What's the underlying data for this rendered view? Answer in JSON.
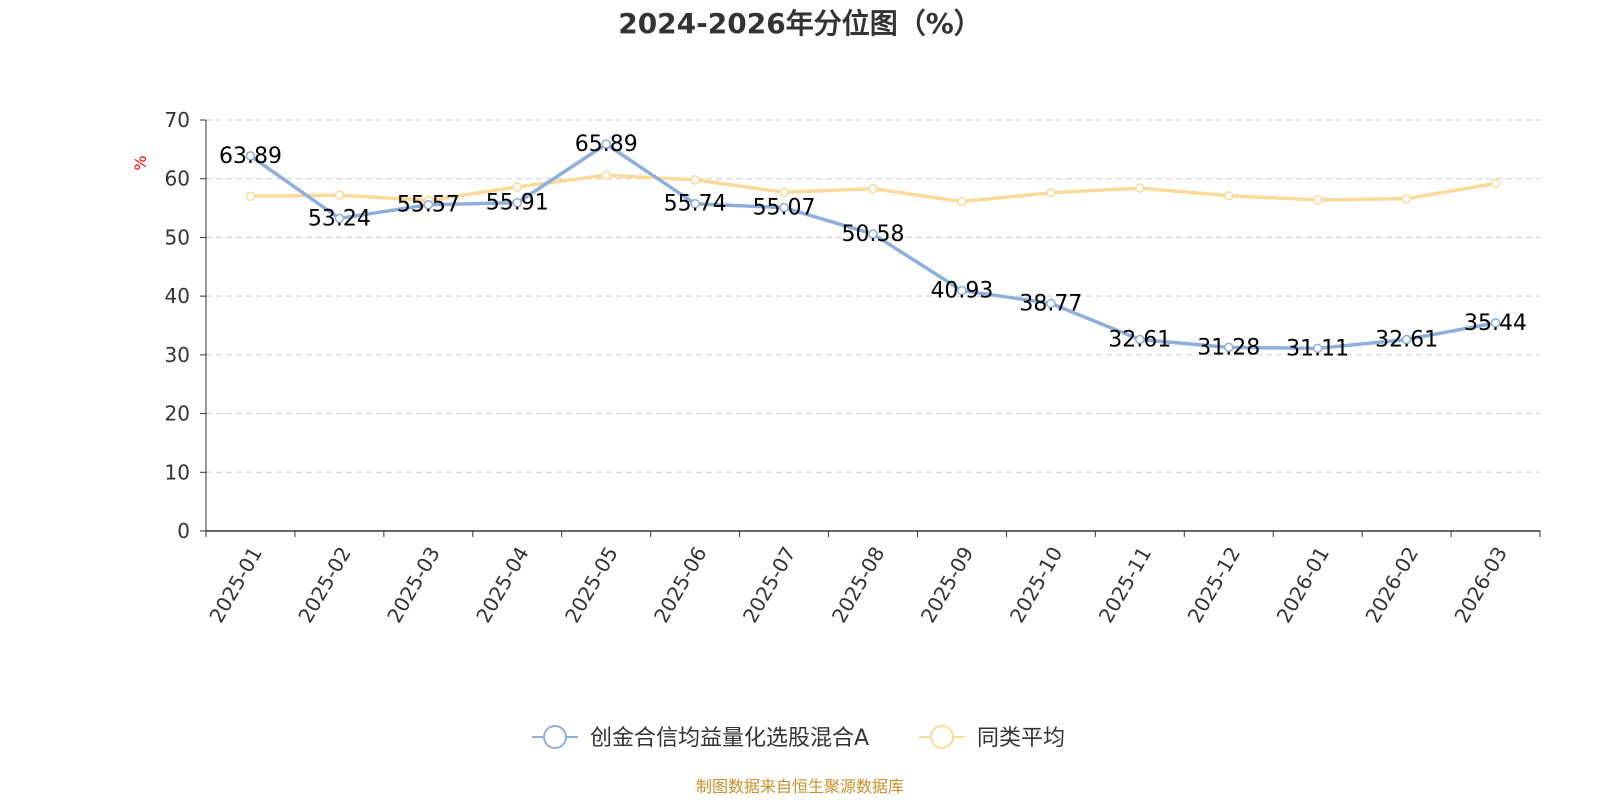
{
  "chart_data": {
    "type": "line",
    "title": "2024-2026年分位图（%）",
    "ylabel": "%",
    "ylim": [
      0,
      70
    ],
    "yticks": [
      "0",
      "10",
      "20",
      "30",
      "40",
      "50",
      "60",
      "70"
    ],
    "categories": [
      "2025-01",
      "2025-02",
      "2025-03",
      "2025-04",
      "2025-05",
      "2025-06",
      "2025-07",
      "2025-08",
      "2025-09",
      "2025-10",
      "2025-11",
      "2025-12",
      "2026-01",
      "2026-02",
      "2026-03"
    ],
    "grid": true,
    "legend_position": "bottom",
    "series": [
      {
        "name": "创金合信均益量化选股混合A",
        "color": "#8eaedb",
        "values": [
          63.89,
          53.24,
          55.57,
          55.91,
          65.89,
          55.74,
          55.07,
          50.58,
          40.93,
          38.77,
          32.61,
          31.28,
          31.11,
          32.61,
          35.44
        ],
        "labels": [
          "63.89",
          "53.24",
          "55.57",
          "55.91",
          "65.89",
          "55.74",
          "55.07",
          "50.58",
          "40.93",
          "38.77",
          "32.61",
          "31.28",
          "31.11",
          "32.61",
          "35.44"
        ]
      },
      {
        "name": "同类平均",
        "color": "#fbd999",
        "values": [
          57.0,
          57.2,
          56.3,
          58.6,
          60.6,
          59.8,
          57.7,
          58.3,
          56.1,
          57.6,
          58.4,
          57.1,
          56.4,
          56.6,
          59.2
        ]
      }
    ]
  },
  "source_note": "制图数据来自恒生聚源数据库",
  "colors": {
    "ylabel": "#ff0000",
    "axis": "#333333",
    "grid": "#cccccc",
    "source": "#c8902a"
  }
}
